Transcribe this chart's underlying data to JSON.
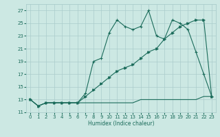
{
  "xlabel": "Humidex (Indice chaleur)",
  "bg_color": "#cce8e3",
  "grid_color": "#aacccc",
  "line_color": "#1a6b5a",
  "xlim": [
    -0.5,
    23.5
  ],
  "ylim": [
    11,
    28
  ],
  "yticks": [
    11,
    13,
    15,
    17,
    19,
    21,
    23,
    25,
    27
  ],
  "xticks": [
    0,
    1,
    2,
    3,
    4,
    5,
    6,
    7,
    8,
    9,
    10,
    11,
    12,
    13,
    14,
    15,
    16,
    17,
    18,
    19,
    20,
    21,
    22,
    23
  ],
  "series1_x": [
    0,
    1,
    2,
    3,
    4,
    5,
    6,
    7,
    8,
    9,
    10,
    11,
    12,
    13,
    14,
    15,
    16,
    17,
    18,
    19,
    20,
    21,
    22,
    23
  ],
  "series1_y": [
    13,
    12,
    12.5,
    12.5,
    12.5,
    12.5,
    12.5,
    14,
    19,
    19.5,
    23.5,
    25.5,
    24.5,
    24,
    24.5,
    27,
    23,
    22.5,
    25.5,
    25,
    24,
    20.5,
    17,
    13.5
  ],
  "series2_x": [
    0,
    1,
    2,
    3,
    4,
    5,
    6,
    7,
    8,
    9,
    10,
    11,
    12,
    13,
    14,
    15,
    16,
    17,
    18,
    19,
    20,
    21,
    22,
    23
  ],
  "series2_y": [
    13,
    12,
    12.5,
    12.5,
    12.5,
    12.5,
    12.5,
    13.5,
    14.5,
    15.5,
    16.5,
    17.5,
    18.0,
    18.5,
    19.5,
    20.5,
    21.0,
    22.5,
    23.5,
    24.5,
    25.0,
    25.5,
    25.5,
    13.5
  ],
  "series3_x": [
    0,
    1,
    2,
    3,
    4,
    5,
    6,
    7,
    8,
    9,
    10,
    11,
    12,
    13,
    14,
    15,
    16,
    17,
    18,
    19,
    20,
    21,
    22,
    23
  ],
  "series3_y": [
    13,
    12,
    12.5,
    12.5,
    12.5,
    12.5,
    12.5,
    12.5,
    12.5,
    12.5,
    12.5,
    12.5,
    12.5,
    12.5,
    13.0,
    13.0,
    13.0,
    13.0,
    13.0,
    13.0,
    13.0,
    13.0,
    13.5,
    13.5
  ]
}
